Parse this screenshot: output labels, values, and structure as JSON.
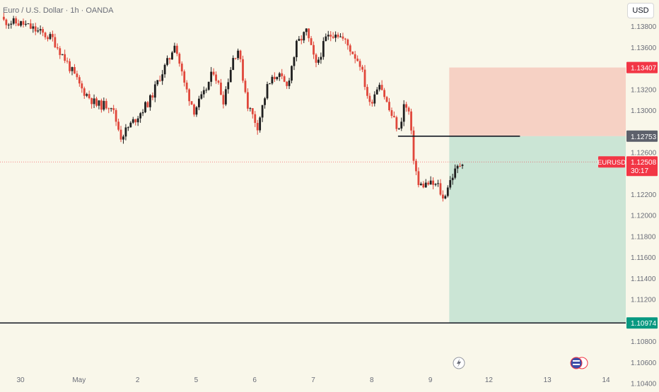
{
  "header": {
    "title": "Euro / U.S. Dollar · 1h · OANDA",
    "currency_button": "USD"
  },
  "colors": {
    "background": "#f9f7ea",
    "up": "#1f1f1f",
    "down": "#e0473b",
    "stop_zone": "#f5ccc0",
    "target_zone": "#c8e4d4",
    "stop_tag": "#f23645",
    "entry_tag": "#5d606b",
    "target_tag": "#089981",
    "price_tag": "#f23645"
  },
  "chart_data": {
    "type": "candlestick",
    "symbol": "EURUSD",
    "timeframe": "1h",
    "ylim": [
      1.1035,
      1.1405
    ],
    "y_ticks": [
      1.138,
      1.136,
      1.134,
      1.132,
      1.13,
      1.128,
      1.126,
      1.124,
      1.122,
      1.12,
      1.118,
      1.116,
      1.114,
      1.112,
      1.11,
      1.108,
      1.106,
      1.104
    ],
    "y_tick_labels": [
      "1.13800",
      "1.13600",
      "",
      "1.13200",
      "1.13000",
      "",
      "1.12600",
      "",
      "1.12200",
      "1.12000",
      "1.11800",
      "1.11600",
      "1.11400",
      "1.11200",
      "",
      "1.10800",
      "1.10600",
      "1.10400"
    ],
    "x_labels": [
      "30",
      "May",
      "2",
      "5",
      "6",
      "7",
      "8",
      "9",
      "12",
      "13",
      "14"
    ],
    "x_label_bars": [
      0,
      24,
      48,
      72,
      96,
      120,
      144,
      168,
      192,
      216,
      240
    ],
    "total_bars": 251,
    "close_path": [
      [
        0,
        1.1385
      ],
      [
        8,
        1.1382
      ],
      [
        14,
        1.1375
      ],
      [
        20,
        1.1368
      ],
      [
        26,
        1.1345
      ],
      [
        32,
        1.132
      ],
      [
        38,
        1.1305
      ],
      [
        44,
        1.1305
      ],
      [
        48,
        1.1275
      ],
      [
        54,
        1.1292
      ],
      [
        60,
        1.131
      ],
      [
        64,
        1.1332
      ],
      [
        68,
        1.135
      ],
      [
        70,
        1.1365
      ],
      [
        74,
        1.1325
      ],
      [
        78,
        1.13
      ],
      [
        82,
        1.1315
      ],
      [
        86,
        1.1338
      ],
      [
        90,
        1.131
      ],
      [
        94,
        1.135
      ],
      [
        96,
        1.1358
      ],
      [
        100,
        1.1305
      ],
      [
        104,
        1.1285
      ],
      [
        108,
        1.1322
      ],
      [
        112,
        1.1335
      ],
      [
        116,
        1.1322
      ],
      [
        120,
        1.1362
      ],
      [
        124,
        1.1375
      ],
      [
        128,
        1.1342
      ],
      [
        132,
        1.1368
      ],
      [
        136,
        1.1375
      ],
      [
        140,
        1.1365
      ],
      [
        146,
        1.1345
      ],
      [
        150,
        1.1305
      ],
      [
        154,
        1.1328
      ],
      [
        158,
        1.13
      ],
      [
        162,
        1.128
      ],
      [
        164,
        1.1305
      ],
      [
        166,
        1.1298
      ],
      [
        168,
        1.1255
      ],
      [
        170,
        1.1228
      ],
      [
        174,
        1.123
      ],
      [
        178,
        1.1228
      ],
      [
        180,
        1.1215
      ],
      [
        182,
        1.1228
      ],
      [
        184,
        1.1238
      ],
      [
        186,
        1.1245
      ],
      [
        188,
        1.1252
      ]
    ],
    "position": {
      "type": "long",
      "entry": 1.12753,
      "stop": 1.13407,
      "target": 1.10974
    },
    "levels": {
      "resistance": 1.12753,
      "support": 1.10974
    },
    "last_price": 1.12508,
    "price_tags": [
      {
        "kind": "stop",
        "label": "1.13407",
        "value": 1.13407
      },
      {
        "kind": "entry",
        "label": "1.12753",
        "value": 1.12753
      },
      {
        "kind": "target",
        "label": "1.10974",
        "value": 1.10974
      },
      {
        "kind": "last",
        "symbol": "EURUSD",
        "label": "1.12508",
        "countdown": "30:17",
        "value": 1.12508
      }
    ]
  }
}
